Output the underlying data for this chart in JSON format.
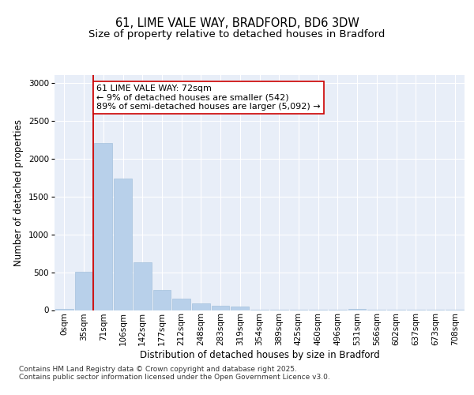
{
  "title_line1": "61, LIME VALE WAY, BRADFORD, BD6 3DW",
  "title_line2": "Size of property relative to detached houses in Bradford",
  "xlabel": "Distribution of detached houses by size in Bradford",
  "ylabel": "Number of detached properties",
  "bar_labels": [
    "0sqm",
    "35sqm",
    "71sqm",
    "106sqm",
    "142sqm",
    "177sqm",
    "212sqm",
    "248sqm",
    "283sqm",
    "319sqm",
    "354sqm",
    "389sqm",
    "425sqm",
    "460sqm",
    "496sqm",
    "531sqm",
    "566sqm",
    "602sqm",
    "637sqm",
    "673sqm",
    "708sqm"
  ],
  "bar_values": [
    20,
    510,
    2200,
    1740,
    630,
    265,
    155,
    85,
    60,
    45,
    10,
    5,
    5,
    5,
    5,
    20,
    5,
    5,
    5,
    5,
    5
  ],
  "bar_color": "#b8d0ea",
  "bar_edge_color": "#9bbbd8",
  "background_color": "#e8eef8",
  "grid_color": "#ffffff",
  "vline_color": "#cc0000",
  "vline_x_index": 2,
  "ylim": [
    0,
    3100
  ],
  "yticks": [
    0,
    500,
    1000,
    1500,
    2000,
    2500,
    3000
  ],
  "annotation_text": "61 LIME VALE WAY: 72sqm\n← 9% of detached houses are smaller (542)\n89% of semi-detached houses are larger (5,092) →",
  "annotation_box_facecolor": "#ffffff",
  "annotation_box_edgecolor": "#cc0000",
  "footnote": "Contains HM Land Registry data © Crown copyright and database right 2025.\nContains public sector information licensed under the Open Government Licence v3.0.",
  "title_fontsize": 10.5,
  "subtitle_fontsize": 9.5,
  "axis_label_fontsize": 8.5,
  "tick_fontsize": 7.5,
  "annotation_fontsize": 8,
  "footnote_fontsize": 6.5
}
